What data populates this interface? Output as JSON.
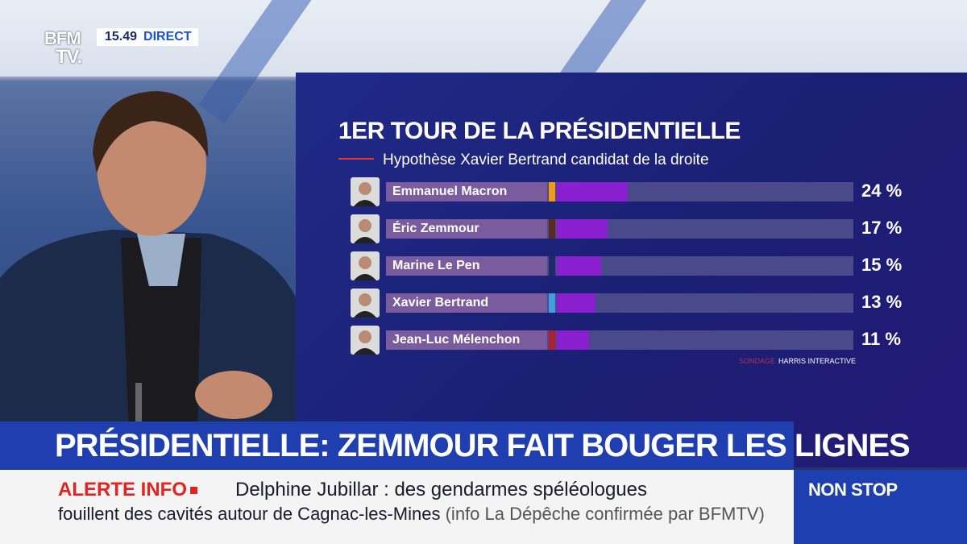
{
  "channel": {
    "logo_line1": "BFM",
    "logo_line2": "TV.",
    "time": "15.49",
    "live_label": "DIRECT"
  },
  "chart_data": {
    "type": "bar",
    "title": "1ER TOUR DE LA PRÉSIDENTIELLE",
    "subtitle": "Hypothèse Xavier Bertrand candidat de la droite",
    "categories": [
      "Emmanuel Macron",
      "Éric Zemmour",
      "Marine Le Pen",
      "Xavier Bertrand",
      "Jean-Luc Mélenchon"
    ],
    "values": [
      24,
      17,
      15,
      13,
      11
    ],
    "value_labels": [
      "24 %",
      "17 %",
      "15 %",
      "13 %",
      "11 %"
    ],
    "party_colors": [
      "#f39c12",
      "#5a2a1a",
      "#1a2a6b",
      "#3aa0e0",
      "#b01f2f"
    ],
    "bar_color": "#8a1fd0",
    "xlim": [
      0,
      100
    ],
    "source_label": "SONDAGE",
    "source": "HARRIS INTERACTIVE"
  },
  "headline": "PRÉSIDENTIELLE: ZEMMOUR FAIT BOUGER LES LIGNES",
  "ticker": {
    "alert_label": "ALERTE INFO",
    "line1": "Delphine Jubillar : des gendarmes spéléologues",
    "line2": "fouillent des cavités autour de Cagnac-les-Mines",
    "line2_paren": "(info La Dépêche confirmée par BFMTV)"
  },
  "nonstop": "NON STOP"
}
